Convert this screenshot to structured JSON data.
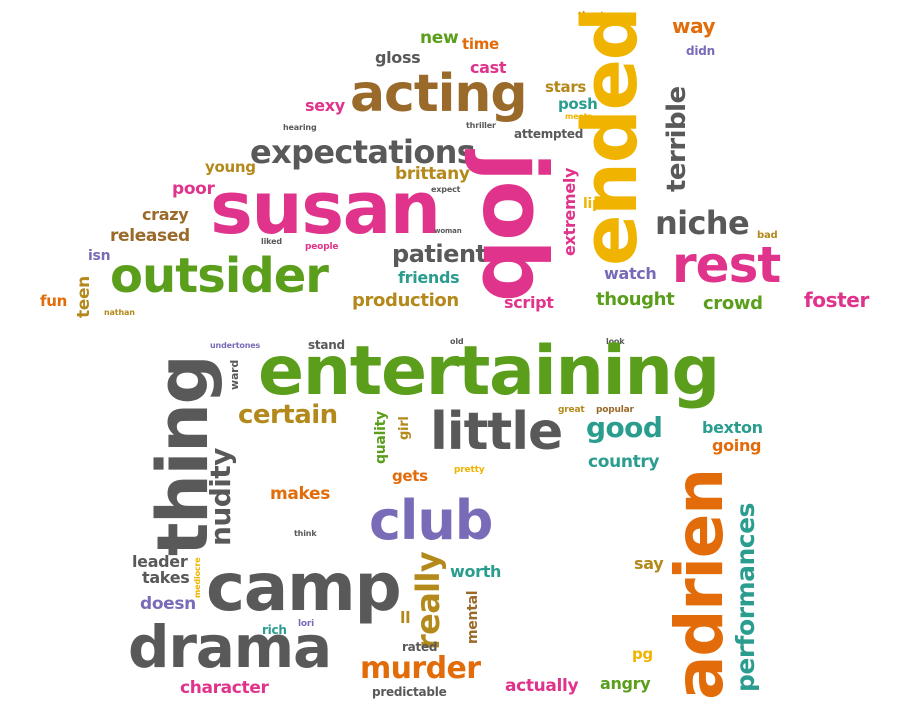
{
  "palette": {
    "gray": "#595959",
    "pink": "#e0338c",
    "green": "#5a9e1c",
    "orange": "#e36c0a",
    "gold": "#b4891b",
    "yellow": "#f0b400",
    "teal": "#2a9d8f",
    "purple": "#7a6bb8",
    "brown": "#9a6a2a"
  },
  "words": {
    "theaters": "theaters",
    "way": "way",
    "new": "new",
    "time": "time",
    "didn": "didn",
    "gloss": "gloss",
    "cast": "cast",
    "acting": "acting",
    "stars": "stars",
    "posh": "posh",
    "meets": "meets",
    "sexy": "sexy",
    "hearing": "hearing",
    "thriller": "thriller",
    "attempted": "attempted",
    "expectations": "expectations",
    "young": "young",
    "brittany": "brittany",
    "expect": "expect",
    "lip": "lip",
    "poor": "poor",
    "susan": "susan",
    "crazy": "crazy",
    "woman": "woman",
    "released": "released",
    "liked": "liked",
    "people": "people",
    "patient": "patient",
    "niche": "niche",
    "bad": "bad",
    "isn": "isn",
    "outsider": "outsider",
    "friends": "friends",
    "watch": "watch",
    "rest": "rest",
    "fun": "fun",
    "teen": "teen",
    "nathan": "nathan",
    "production": "production",
    "script": "script",
    "thought": "thought",
    "crowd": "crowd",
    "foster": "foster",
    "job": "job",
    "ended": "ended",
    "terrible": "terrible",
    "extremely": "extremely",
    "undertones": "undertones",
    "stand": "stand",
    "old": "old",
    "look": "look",
    "entertaining": "entertaining",
    "ward": "ward",
    "thing": "thing",
    "certain": "certain",
    "quality": "quality",
    "girl": "girl",
    "great": "great",
    "popular": "popular",
    "little": "little",
    "good": "good",
    "bexton": "bexton",
    "going": "going",
    "country": "country",
    "nudity": "nudity",
    "gets": "gets",
    "pretty": "pretty",
    "adrien": "adrien",
    "makes": "makes",
    "performances": "performances",
    "club": "club",
    "think": "think",
    "leader": "leader",
    "mediocre": "mediocre",
    "takes": "takes",
    "camp": "camp",
    "really": "really",
    "worth": "worth",
    "say": "say",
    "doesn": "doesn",
    "ll": "ll",
    "mental": "mental",
    "rich": "rich",
    "lori": "lori",
    "drama": "drama",
    "rated": "rated",
    "pg": "pg",
    "murder": "murder",
    "character": "character",
    "predictable": "predictable",
    "actually": "actually",
    "angry": "angry"
  }
}
